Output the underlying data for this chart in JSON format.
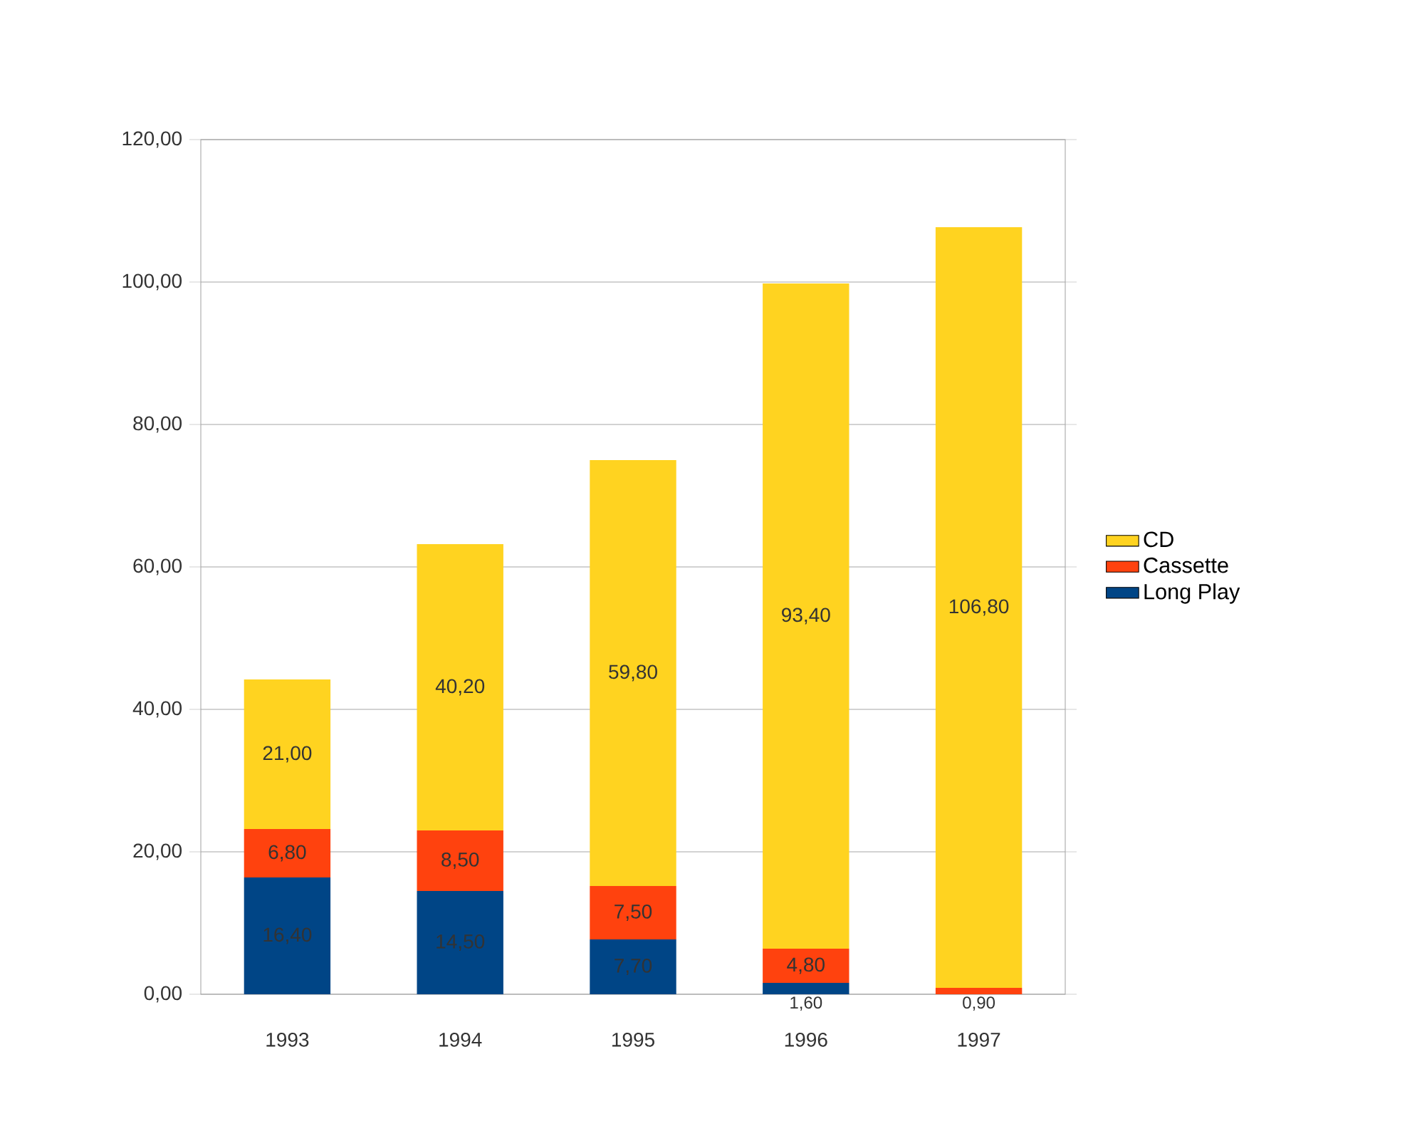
{
  "chart_data": {
    "type": "bar",
    "stacked": true,
    "categories": [
      "1993",
      "1994",
      "1995",
      "1996",
      "1997"
    ],
    "series": [
      {
        "name": "Long Play",
        "color": "#004586",
        "values": [
          16.4,
          14.5,
          7.7,
          1.6,
          null
        ],
        "value_labels": [
          "16,40",
          "14,50",
          "7,70",
          "1,60",
          null
        ]
      },
      {
        "name": "Cassette",
        "color": "#ff420e",
        "values": [
          6.8,
          8.5,
          7.5,
          4.8,
          0.9
        ],
        "value_labels": [
          "6,80",
          "8,50",
          "7,50",
          "4,80",
          "0,90"
        ]
      },
      {
        "name": "CD",
        "color": "#ffd320",
        "values": [
          21.0,
          40.2,
          59.8,
          93.4,
          106.8
        ],
        "value_labels": [
          "21,00",
          "40,20",
          "59,80",
          "93,40",
          "106,80"
        ]
      }
    ],
    "ylim": [
      0,
      120
    ],
    "yticks": [
      {
        "value": 0,
        "label": "0,00"
      },
      {
        "value": 20,
        "label": "20,00"
      },
      {
        "value": 40,
        "label": "40,00"
      },
      {
        "value": 60,
        "label": "60,00"
      },
      {
        "value": 80,
        "label": "80,00"
      },
      {
        "value": 100,
        "label": "100,00"
      },
      {
        "value": 120,
        "label": "120,00"
      }
    ],
    "grid": "y",
    "legend": "right"
  }
}
